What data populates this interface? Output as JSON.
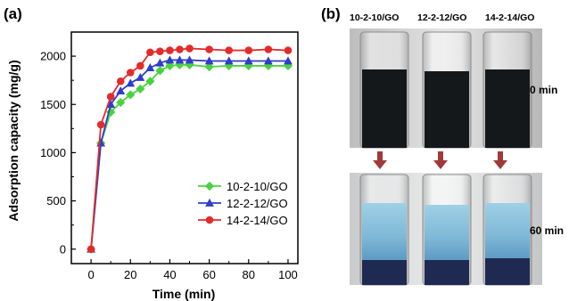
{
  "panels": {
    "a_label": "(a)",
    "b_label": "(b)"
  },
  "chart_data": {
    "type": "line",
    "xlabel": "Time (min)",
    "ylabel": "Adsorption capacity (mg/g)",
    "xlim": [
      -10,
      105
    ],
    "ylim": [
      -150,
      2250
    ],
    "xticks": [
      0,
      20,
      40,
      60,
      80,
      100
    ],
    "yticks": [
      0,
      500,
      1000,
      1500,
      2000
    ],
    "grid": false,
    "legend_position": "bottom-right",
    "series": [
      {
        "name": "10-2-10/GO",
        "color": "#49d23f",
        "marker": "diamond",
        "x": [
          0,
          5,
          10,
          15,
          20,
          25,
          30,
          35,
          40,
          45,
          50,
          60,
          70,
          80,
          90,
          100
        ],
        "y": [
          0,
          1100,
          1420,
          1520,
          1600,
          1660,
          1740,
          1850,
          1900,
          1910,
          1910,
          1890,
          1900,
          1900,
          1900,
          1900
        ]
      },
      {
        "name": "12-2-12/GO",
        "color": "#2e3ec9",
        "marker": "triangle",
        "x": [
          0,
          5,
          10,
          15,
          20,
          25,
          30,
          35,
          40,
          45,
          50,
          60,
          70,
          80,
          90,
          100
        ],
        "y": [
          0,
          1100,
          1500,
          1640,
          1720,
          1780,
          1880,
          1930,
          1960,
          1960,
          1960,
          1950,
          1950,
          1950,
          1950,
          1950
        ]
      },
      {
        "name": "14-2-14/GO",
        "color": "#e42b2b",
        "marker": "circle",
        "x": [
          0,
          5,
          10,
          15,
          20,
          25,
          30,
          35,
          40,
          45,
          50,
          60,
          70,
          80,
          90,
          100
        ],
        "y": [
          0,
          1290,
          1580,
          1740,
          1830,
          1900,
          2040,
          2050,
          2060,
          2070,
          2080,
          2070,
          2060,
          2060,
          2070,
          2060
        ]
      }
    ]
  },
  "photos": {
    "tube_labels": [
      "10-2-10/GO",
      "12-2-12/GO",
      "14-2-14/GO"
    ],
    "time_top": "0 min",
    "time_bottom": "60 min",
    "arrow_color": "#a0393a",
    "top_liquid_color": "#14181a",
    "bottom_liquid_color": "#8ec3dc"
  }
}
